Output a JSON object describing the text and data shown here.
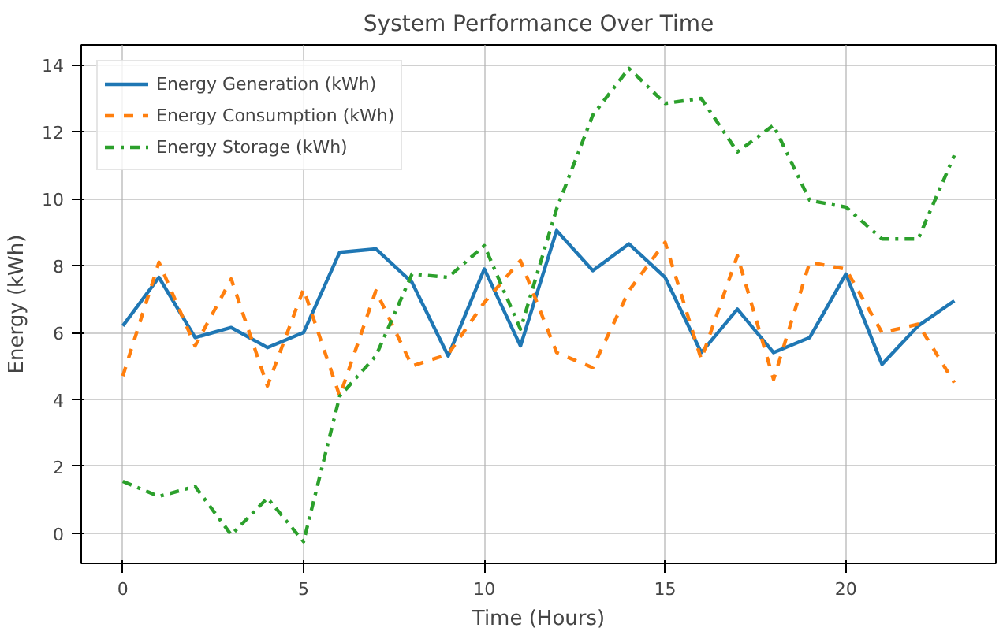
{
  "chart_data": {
    "type": "line",
    "title": "System Performance Over Time",
    "xlabel": "Time (Hours)",
    "ylabel": "Energy (kWh)",
    "x": [
      0,
      1,
      2,
      3,
      4,
      5,
      6,
      7,
      8,
      9,
      10,
      11,
      12,
      13,
      14,
      15,
      16,
      17,
      18,
      19,
      20,
      21,
      22,
      23
    ],
    "series": [
      {
        "name": "Energy Generation (kWh)",
        "color": "#1f77b4",
        "line_style": "solid",
        "values": [
          6.2,
          7.65,
          5.85,
          6.15,
          5.55,
          6.0,
          8.4,
          8.5,
          7.5,
          5.3,
          7.9,
          5.6,
          9.05,
          7.85,
          8.65,
          7.65,
          5.4,
          6.7,
          5.4,
          5.85,
          7.75,
          5.05,
          6.2,
          6.95
        ]
      },
      {
        "name": "Energy Consumption (kWh)",
        "color": "#ff7f0e",
        "line_style": "dashed",
        "values": [
          4.7,
          8.1,
          5.6,
          7.6,
          4.4,
          7.3,
          4.1,
          7.25,
          5.0,
          5.35,
          6.9,
          8.15,
          5.4,
          4.95,
          7.25,
          8.7,
          5.2,
          8.3,
          4.6,
          8.1,
          7.9,
          6.0,
          6.25,
          4.5
        ]
      },
      {
        "name": "Energy Storage (kWh)",
        "color": "#2ca02c",
        "line_style": "dashdot",
        "values": [
          1.55,
          1.1,
          1.4,
          -0.05,
          1.05,
          -0.25,
          4.1,
          5.3,
          7.75,
          7.65,
          8.6,
          6.1,
          9.7,
          12.5,
          13.9,
          12.85,
          13.0,
          11.4,
          12.2,
          9.95,
          9.75,
          8.8,
          8.8,
          11.3
        ]
      }
    ],
    "xlim": [
      -1.15,
      24.15
    ],
    "ylim": [
      -0.9,
      14.6
    ],
    "xticks": [
      0,
      5,
      10,
      15,
      20
    ],
    "yticks": [
      0,
      2,
      4,
      6,
      8,
      10,
      12,
      14
    ],
    "grid": true,
    "legend": "top left"
  }
}
